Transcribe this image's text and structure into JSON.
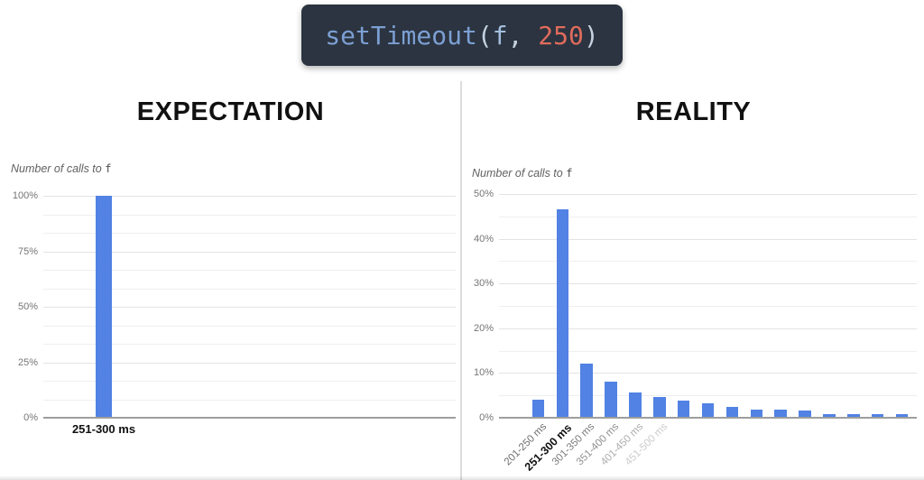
{
  "code_snippet": {
    "text": "setTimeout(f, 250)",
    "background": "#2b3440",
    "tokens": [
      {
        "text": "setTimeout",
        "color": "#7c9fd3"
      },
      {
        "text": "(",
        "color": "#c5d1e0"
      },
      {
        "text": "f",
        "color": "#a3bedd"
      },
      {
        "text": ", ",
        "color": "#c5d1e0"
      },
      {
        "text": "250",
        "color": "#e06b5c"
      },
      {
        "text": ")",
        "color": "#c5d1e0"
      }
    ]
  },
  "panels": [
    {
      "title": "EXPECTATION",
      "axis_title_prefix": "Number of calls to ",
      "axis_title_func": "f"
    },
    {
      "title": "REALITY",
      "axis_title_prefix": "Number of calls to ",
      "axis_title_func": "f"
    }
  ],
  "accent_color": "#5182e4",
  "chart_data": [
    {
      "type": "bar",
      "title": "EXPECTATION",
      "ylabel": "Number of calls to f",
      "categories": [
        "251-300 ms"
      ],
      "values": [
        100
      ],
      "ylim": [
        0,
        100
      ],
      "yticks": [
        {
          "value": 0,
          "label": "0%"
        },
        {
          "value": 25,
          "label": "25%"
        },
        {
          "value": 50,
          "label": "50%"
        },
        {
          "value": 75,
          "label": "75%"
        },
        {
          "value": 100,
          "label": "100%"
        }
      ],
      "minor_per_major": 3,
      "grid": true,
      "legend": "none",
      "bar_color": "#5182e4",
      "label_colors": [
        "#111111"
      ],
      "emphasized_category_index": 0
    },
    {
      "type": "bar",
      "title": "REALITY",
      "ylabel": "Number of calls to f",
      "categories": [
        "201-250 ms",
        "251-300 ms",
        "301-350 ms",
        "351-400 ms",
        "401-450 ms",
        "451-500 ms",
        "",
        "",
        "",
        "",
        "",
        "",
        "",
        "",
        "",
        ""
      ],
      "values": [
        4,
        46.5,
        12,
        8,
        5.7,
        4.7,
        3.9,
        3.2,
        2.5,
        1.8,
        1.8,
        1.7,
        0.9,
        0.9,
        0.9,
        0.9
      ],
      "ylim": [
        0,
        50
      ],
      "yticks": [
        {
          "value": 0,
          "label": "0%"
        },
        {
          "value": 10,
          "label": "10%"
        },
        {
          "value": 20,
          "label": "20%"
        },
        {
          "value": 30,
          "label": "30%"
        },
        {
          "value": 40,
          "label": "40%"
        },
        {
          "value": 50,
          "label": "50%"
        }
      ],
      "minor_per_major": 2,
      "grid": true,
      "legend": "none",
      "bar_color": "#5182e4",
      "label_colors": [
        "#6e6e6e",
        "#111111",
        "#7c7c7c",
        "#8f8f8f",
        "#acacac",
        "#cbcbcb",
        "",
        "",
        "",
        "",
        "",
        "",
        "",
        "",
        "",
        ""
      ],
      "emphasized_category_index": 1
    }
  ]
}
